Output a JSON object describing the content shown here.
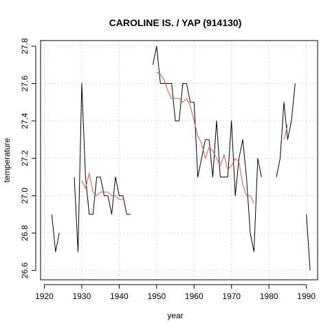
{
  "chart_data": {
    "type": "line",
    "title": "CAROLINE IS. / YAP (914130)",
    "xlabel": "year",
    "ylabel": "temperature",
    "xlim": [
      1919,
      1993
    ],
    "ylim": [
      26.55,
      27.83
    ],
    "xticks": [
      1920,
      1930,
      1940,
      1950,
      1960,
      1970,
      1980,
      1990
    ],
    "yticks": [
      26.6,
      26.8,
      27.0,
      27.2,
      27.4,
      27.6,
      27.8
    ],
    "grid": true,
    "series": [
      {
        "color": "#000000",
        "segments": [
          [
            [
              1922,
              26.9
            ],
            [
              1923,
              26.7
            ],
            [
              1924,
              26.8
            ]
          ],
          [
            [
              1928,
              27.1
            ],
            [
              1929,
              26.7
            ],
            [
              1930,
              27.6
            ],
            [
              1931,
              27.1
            ],
            [
              1932,
              26.9
            ],
            [
              1933,
              26.9
            ],
            [
              1934,
              27.1
            ],
            [
              1935,
              27.1
            ],
            [
              1936,
              27.0
            ],
            [
              1937,
              27.0
            ],
            [
              1938,
              26.9
            ],
            [
              1939,
              27.1
            ],
            [
              1940,
              27.0
            ],
            [
              1941,
              27.0
            ],
            [
              1942,
              26.9
            ],
            [
              1943,
              26.9
            ]
          ],
          [
            [
              1949,
              27.7
            ],
            [
              1950,
              27.8
            ],
            [
              1951,
              27.6
            ],
            [
              1952,
              27.6
            ],
            [
              1953,
              27.6
            ],
            [
              1954,
              27.6
            ],
            [
              1955,
              27.4
            ],
            [
              1956,
              27.4
            ],
            [
              1957,
              27.6
            ],
            [
              1958,
              27.6
            ],
            [
              1959,
              27.5
            ],
            [
              1960,
              27.5
            ],
            [
              1961,
              27.1
            ],
            [
              1962,
              27.2
            ],
            [
              1963,
              27.3
            ],
            [
              1964,
              27.3
            ],
            [
              1965,
              27.1
            ],
            [
              1966,
              27.4
            ],
            [
              1967,
              27.1
            ],
            [
              1968,
              27.1
            ],
            [
              1969,
              27.1
            ],
            [
              1970,
              27.4
            ],
            [
              1971,
              27.0
            ],
            [
              1972,
              27.2
            ],
            [
              1973,
              27.3
            ],
            [
              1974,
              27.1
            ],
            [
              1975,
              26.8
            ],
            [
              1976,
              26.7
            ],
            [
              1977,
              27.2
            ],
            [
              1978,
              27.1
            ]
          ],
          [
            [
              1982,
              27.1
            ],
            [
              1983,
              27.2
            ],
            [
              1984,
              27.5
            ],
            [
              1985,
              27.3
            ],
            [
              1986,
              27.4
            ],
            [
              1987,
              27.6
            ]
          ],
          [
            [
              1990,
              26.9
            ],
            [
              1991,
              26.6
            ]
          ]
        ]
      },
      {
        "color": "#e8503a",
        "segments": [
          [
            [
              1930,
              27.08
            ],
            [
              1931,
              27.04
            ],
            [
              1932,
              27.12
            ],
            [
              1933,
              27.02
            ],
            [
              1934,
              27.0
            ],
            [
              1935,
              27.02
            ],
            [
              1936,
              27.02
            ],
            [
              1937,
              27.02
            ],
            [
              1938,
              27.0
            ],
            [
              1939,
              27.0
            ],
            [
              1940,
              26.98
            ],
            [
              1941,
              26.98
            ]
          ],
          [
            [
              1950,
              27.66
            ],
            [
              1951,
              27.65
            ],
            [
              1952,
              27.62
            ],
            [
              1953,
              27.56
            ],
            [
              1954,
              27.52
            ],
            [
              1955,
              27.52
            ],
            [
              1956,
              27.52
            ],
            [
              1957,
              27.5
            ],
            [
              1958,
              27.52
            ],
            [
              1959,
              27.48
            ],
            [
              1960,
              27.4
            ],
            [
              1961,
              27.32
            ],
            [
              1962,
              27.28
            ],
            [
              1963,
              27.2
            ],
            [
              1964,
              27.26
            ],
            [
              1965,
              27.24
            ],
            [
              1966,
              27.2
            ],
            [
              1967,
              27.16
            ],
            [
              1968,
              27.22
            ],
            [
              1969,
              27.14
            ],
            [
              1970,
              27.16
            ],
            [
              1971,
              27.2
            ],
            [
              1972,
              27.18
            ],
            [
              1973,
              27.06
            ],
            [
              1974,
              27.0
            ],
            [
              1975,
              27.0
            ],
            [
              1976,
              26.96
            ]
          ],
          [
            [
              1984,
              27.3
            ],
            [
              1985,
              27.38
            ]
          ]
        ]
      }
    ]
  }
}
